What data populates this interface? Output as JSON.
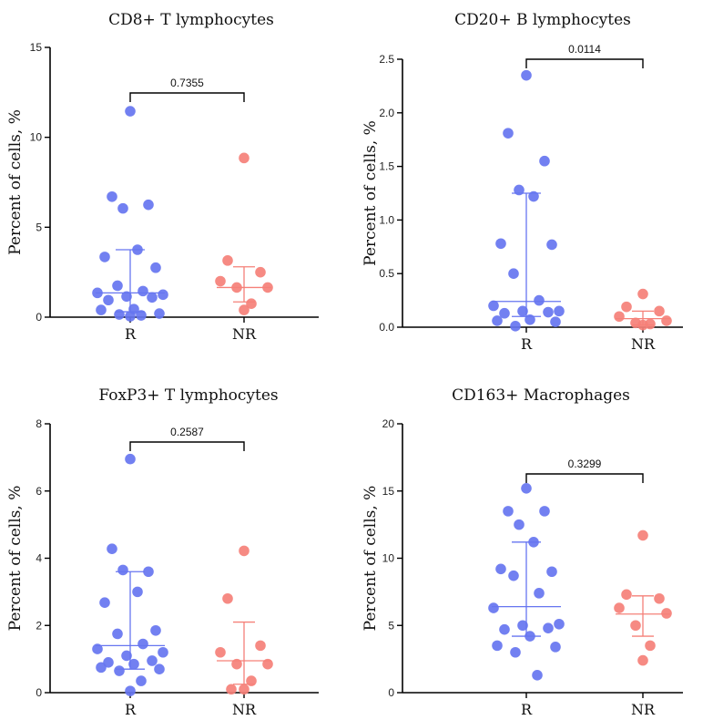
{
  "chart_data": [
    {
      "type": "scatter",
      "title": "CD8+ T lymphocytes",
      "ylabel": "Percent of cells, %",
      "categories": [
        "R",
        "NR"
      ],
      "ylim": [
        0,
        15
      ],
      "yticks": [
        "0",
        "5",
        "10",
        "15"
      ],
      "pvalue": "0.7355",
      "series": [
        {
          "category": "R",
          "color": "#6675f0",
          "values": [
            11.45,
            6.7,
            6.25,
            6.05,
            3.75,
            3.35,
            2.75,
            1.75,
            1.45,
            1.35,
            1.25,
            1.15,
            1.1,
            0.95,
            0.45,
            0.4,
            0.2,
            0.15,
            0.1,
            0.05
          ],
          "median": 1.35,
          "iqr": [
            0.3,
            3.75
          ]
        },
        {
          "category": "NR",
          "color": "#f58078",
          "values": [
            8.85,
            3.15,
            2.5,
            2.0,
            1.65,
            1.65,
            0.75,
            0.4
          ],
          "median": 1.65,
          "iqr": [
            0.85,
            2.8
          ]
        }
      ]
    },
    {
      "type": "scatter",
      "title": "CD20+ B lymphocytes",
      "ylabel": "Percent of cells, %",
      "categories": [
        "R",
        "NR"
      ],
      "ylim": [
        0,
        2.5
      ],
      "yticks": [
        "0.0",
        "0.5",
        "1.0",
        "1.5",
        "2.0",
        "2.5"
      ],
      "pvalue": "0.0114",
      "series": [
        {
          "category": "R",
          "color": "#6675f0",
          "values": [
            2.35,
            1.81,
            1.55,
            1.28,
            1.22,
            0.78,
            0.77,
            0.5,
            0.25,
            0.2,
            0.15,
            0.15,
            0.14,
            0.13,
            0.07,
            0.06,
            0.05,
            0.01
          ],
          "median": 0.24,
          "iqr": [
            0.1,
            1.25
          ]
        },
        {
          "category": "NR",
          "color": "#f58078",
          "values": [
            0.31,
            0.19,
            0.15,
            0.1,
            0.06,
            0.04,
            0.03,
            0.02
          ],
          "median": 0.08,
          "iqr": [
            0.02,
            0.15
          ]
        }
      ]
    },
    {
      "type": "scatter",
      "title": "FoxP3+ T lymphocytes",
      "ylabel": "Percent of cells, %",
      "categories": [
        "R",
        "NR"
      ],
      "ylim": [
        0,
        8
      ],
      "yticks": [
        "0",
        "2",
        "4",
        "6",
        "8"
      ],
      "pvalue": "0.2587",
      "series": [
        {
          "category": "R",
          "color": "#6675f0",
          "values": [
            6.95,
            4.28,
            3.6,
            3.65,
            3.0,
            2.68,
            1.85,
            1.75,
            1.45,
            1.3,
            1.2,
            1.1,
            0.95,
            0.9,
            0.85,
            0.75,
            0.7,
            0.65,
            0.35,
            0.05
          ],
          "median": 1.4,
          "iqr": [
            0.7,
            3.6
          ]
        },
        {
          "category": "NR",
          "color": "#f58078",
          "values": [
            4.22,
            2.8,
            1.4,
            1.2,
            0.85,
            0.85,
            0.35,
            0.1,
            0.1
          ],
          "median": 0.95,
          "iqr": [
            0.25,
            2.1
          ]
        }
      ]
    },
    {
      "type": "scatter",
      "title": "CD163+ Macrophages",
      "ylabel": "Percent of cells, %",
      "categories": [
        "R",
        "NR"
      ],
      "ylim": [
        0,
        20
      ],
      "yticks": [
        "0",
        "5",
        "10",
        "15",
        "20"
      ],
      "pvalue": "0.3299",
      "series": [
        {
          "category": "R",
          "color": "#6675f0",
          "values": [
            15.2,
            13.5,
            13.5,
            12.5,
            11.2,
            9.2,
            9.0,
            8.7,
            7.4,
            6.3,
            5.1,
            5.0,
            4.8,
            4.7,
            4.2,
            3.5,
            3.4,
            3.0,
            1.3
          ],
          "median": 6.4,
          "iqr": [
            4.2,
            11.2
          ]
        },
        {
          "category": "NR",
          "color": "#f58078",
          "values": [
            11.7,
            7.3,
            7.0,
            6.3,
            5.9,
            5.0,
            3.5,
            2.4
          ],
          "median": 5.85,
          "iqr": [
            4.2,
            7.2
          ]
        }
      ]
    }
  ]
}
